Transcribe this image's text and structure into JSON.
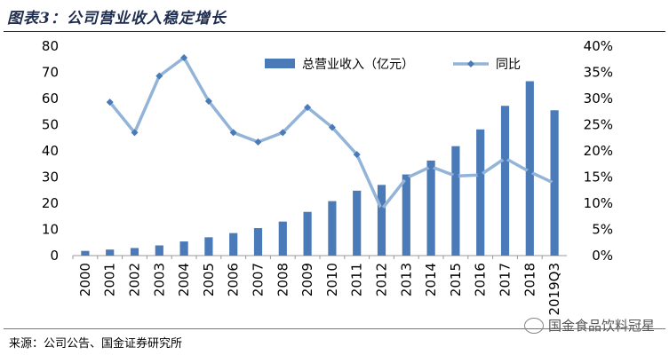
{
  "title": "图表3：公司营业收入稳定增长",
  "source": "来源：公司公告、国金证券研究所",
  "watermark": "国金食品饮料冠星",
  "colors": {
    "bar": "#4a7ab7",
    "line": "#92b4d8",
    "marker": "#4a7ab7",
    "title": "#1f2d4f"
  },
  "chart_data": {
    "type": "bar",
    "categories": [
      "2000",
      "2001",
      "2002",
      "2003",
      "2004",
      "2005",
      "2006",
      "2007",
      "2008",
      "2009",
      "2010",
      "2011",
      "2012",
      "2013",
      "2014",
      "2015",
      "2016",
      "2017",
      "2018",
      "2019Q3"
    ],
    "series": [
      {
        "name": "总营业收入（亿元）",
        "type": "bar",
        "axis": "left",
        "values": [
          1.8,
          2.3,
          2.9,
          3.9,
          5.4,
          7.0,
          8.6,
          10.5,
          13.0,
          16.7,
          20.8,
          24.8,
          27.0,
          31.0,
          36.3,
          41.8,
          48.2,
          57.2,
          66.6,
          55.5
        ]
      },
      {
        "name": "同比",
        "type": "line",
        "axis": "right",
        "values": [
          null,
          29.3,
          23.5,
          34.3,
          37.8,
          29.5,
          23.5,
          21.7,
          23.5,
          28.3,
          24.5,
          19.3,
          8.8,
          14.8,
          17.0,
          15.2,
          15.4,
          18.6,
          16.0,
          13.8
        ]
      }
    ],
    "y_left": {
      "min": 0,
      "max": 80,
      "ticks": [
        "0",
        "10",
        "20",
        "30",
        "40",
        "50",
        "60",
        "70",
        "80"
      ]
    },
    "y_right": {
      "min": 0,
      "max": 40,
      "ticks": [
        "0%",
        "5%",
        "10%",
        "15%",
        "20%",
        "25%",
        "30%",
        "35%",
        "40%"
      ]
    },
    "legend": [
      "总营业收入（亿元）",
      "同比"
    ],
    "legend_position": "top-right",
    "grid": false
  }
}
